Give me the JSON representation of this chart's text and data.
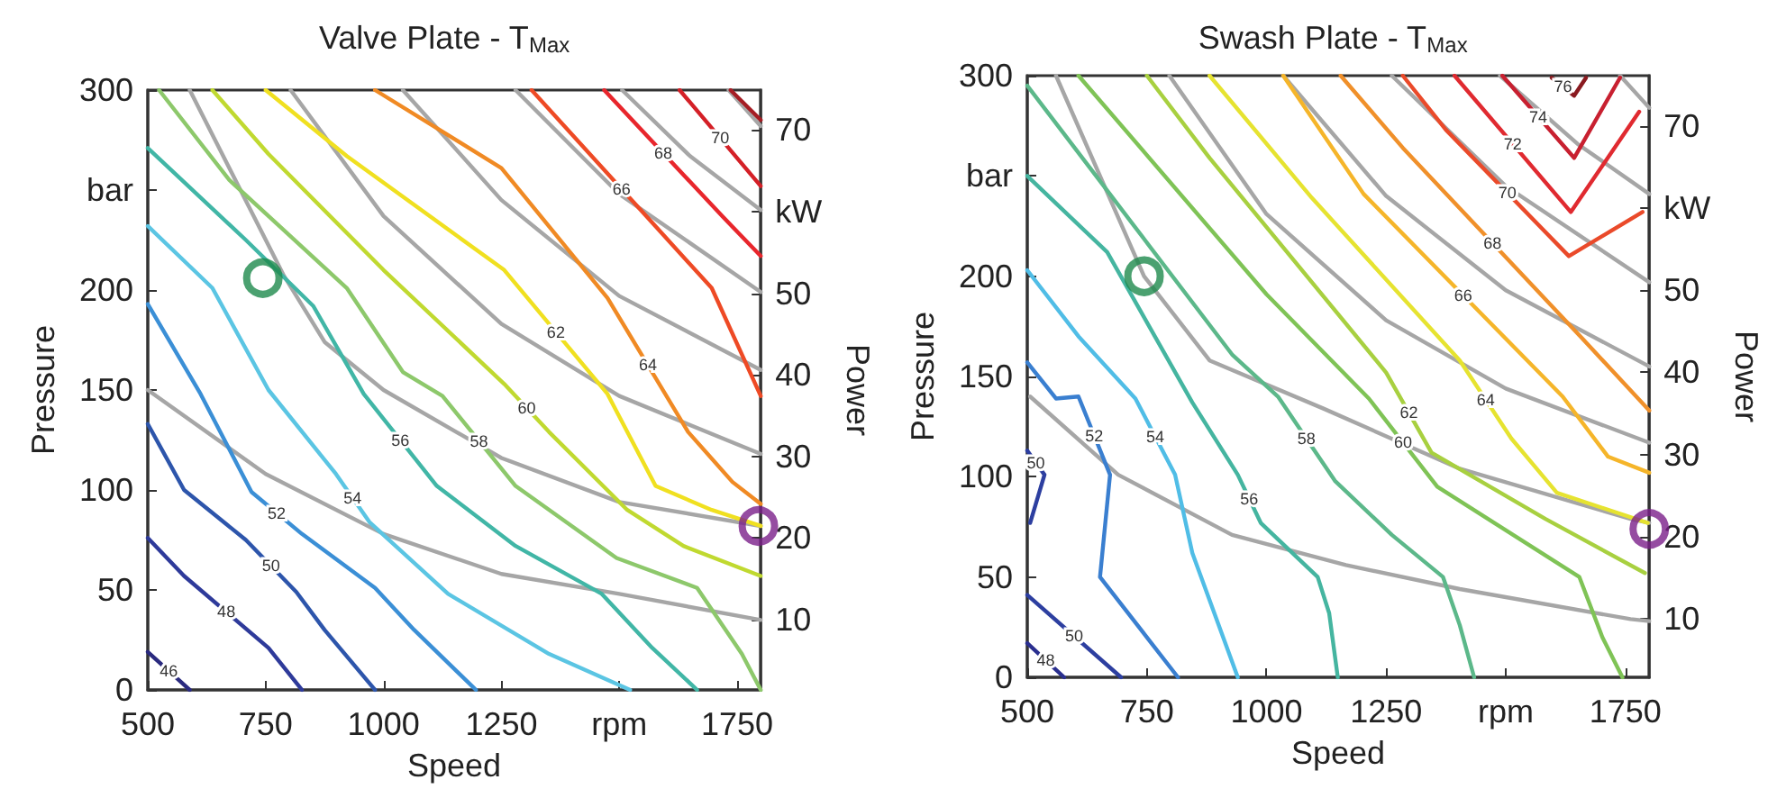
{
  "chart_data": [
    {
      "type": "line",
      "title": "Valve Plate - T$_{Max}$",
      "xlabel": "Speed",
      "ylabel": "Pressure",
      "y2label": "Power",
      "xlim": [
        500,
        1800
      ],
      "xticks": [
        500,
        750,
        1000,
        1250,
        {
          "value": 1500,
          "label": "rpm"
        },
        1750
      ],
      "ylim": [
        0,
        300
      ],
      "yticks": [
        0,
        50,
        100,
        150,
        200,
        {
          "value": 250,
          "label": "bar"
        },
        300
      ],
      "y2lim": [
        1.4,
        74.9
      ],
      "y2ticks": [
        10,
        20,
        30,
        40,
        50,
        {
          "value": 60,
          "label": "kW"
        },
        70
      ],
      "grid": false,
      "legend": false,
      "marker": "none",
      "line_style": "solid",
      "series": [
        {
          "color": "#a6a6a6",
          "x": [
            500,
            750,
            1000,
            1250,
            1500,
            1800
          ],
          "values": [
            150,
            108,
            78,
            58,
            48,
            35
          ]
        },
        {
          "color": "#a6a6a6",
          "x": [
            589,
            789,
            875,
            1000,
            1250,
            1500,
            1800
          ],
          "values": [
            300,
            207,
            174,
            150,
            116,
            94,
            82
          ]
        },
        {
          "color": "#a6a6a6",
          "x": [
            803,
            1000,
            1250,
            1500,
            1800
          ],
          "values": [
            300,
            237,
            183,
            147,
            118
          ]
        },
        {
          "color": "#a6a6a6",
          "x": [
            1041,
            1250,
            1500,
            1800
          ],
          "values": [
            300,
            245,
            197,
            160
          ]
        },
        {
          "color": "#a6a6a6",
          "x": [
            1280,
            1500,
            1800
          ],
          "values": [
            300,
            248,
            199
          ]
        },
        {
          "color": "#a6a6a6",
          "x": [
            1506,
            1650,
            1800
          ],
          "values": [
            300,
            267,
            240
          ]
        },
        {
          "color": "#a6a6a6",
          "x": [
            1732,
            1800
          ],
          "values": [
            300,
            282
          ]
        },
        {
          "name": "46",
          "color": "#2a2a7f",
          "x": [
            500,
            589
          ],
          "values": [
            19,
            0
          ]
        },
        {
          "name": "48",
          "color": "#2e3a9a",
          "x": [
            500,
            577,
            756,
            827
          ],
          "values": [
            76,
            57,
            21,
            0
          ]
        },
        {
          "name": "50",
          "color": "#2d55ab",
          "x": [
            500,
            577,
            708,
            815,
            875,
            982
          ],
          "values": [
            133,
            100,
            75,
            49,
            30,
            0
          ]
        },
        {
          "name": "52",
          "color": "#3b8fd6",
          "x": [
            500,
            612,
            720,
            827,
            982,
            1065,
            1196
          ],
          "values": [
            193,
            148,
            99,
            78,
            51,
            30,
            0
          ]
        },
        {
          "name": "54",
          "color": "#5bc5e3",
          "x": [
            500,
            637,
            756,
            899,
            970,
            1137,
            1351,
            1523
          ],
          "values": [
            232,
            201,
            150,
            108,
            84,
            48,
            18,
            0
          ]
        },
        {
          "name": "56",
          "color": "#41b6a6",
          "x": [
            500,
            708,
            851,
            958,
            1113,
            1280,
            1463,
            1570,
            1665
          ],
          "values": [
            271,
            225,
            192,
            148,
            102,
            72,
            48,
            21,
            0
          ]
        },
        {
          "name": "58",
          "color": "#8dc86b",
          "x": [
            524,
            673,
            922,
            1041,
            1125,
            1280,
            1494,
            1665,
            1760,
            1800
          ],
          "values": [
            300,
            255,
            201,
            159,
            147,
            102,
            66,
            51,
            18,
            0
          ]
        },
        {
          "name": "60",
          "color": "#c0d930",
          "x": [
            637,
            756,
            1000,
            1256,
            1351,
            1517,
            1636,
            1800
          ],
          "values": [
            300,
            268,
            210,
            153,
            129,
            90,
            72,
            57
          ]
        },
        {
          "name": "62",
          "color": "#f0e020",
          "x": [
            750,
            922,
            1256,
            1475,
            1577,
            1696,
            1800
          ],
          "values": [
            300,
            267,
            210,
            148,
            102,
            90,
            82
          ]
        },
        {
          "name": "64",
          "color": "#f08a24",
          "x": [
            982,
            1250,
            1475,
            1646,
            1740,
            1800
          ],
          "values": [
            300,
            261,
            196,
            129,
            104,
            93
          ]
        },
        {
          "name": "66",
          "color": "#ee4a25",
          "x": [
            1314,
            1696,
            1800
          ],
          "values": [
            300,
            201,
            147
          ]
        },
        {
          "name": "68",
          "color": "#e8262c",
          "x": [
            1468,
            1718,
            1800
          ],
          "values": [
            300,
            237,
            217
          ]
        },
        {
          "name": "70",
          "color": "#d42027",
          "x": [
            1628,
            1800
          ],
          "values": [
            300,
            252
          ]
        },
        {
          "color": "#a51d24",
          "x": [
            1736,
            1800
          ],
          "values": [
            300,
            285
          ]
        },
        {
          "type": "scatter",
          "marker": "circle",
          "color": "#1e8a4c",
          "x": [
            744
          ],
          "values": [
            206
          ]
        },
        {
          "type": "scatter",
          "marker": "circle",
          "color": "#7b1f8a",
          "x": [
            1795
          ],
          "values": [
            82
          ]
        }
      ]
    },
    {
      "type": "line",
      "title": "Swash Plate - T$_{Max}$",
      "xlabel": "Speed",
      "ylabel": "Pressure",
      "y2label": "Power",
      "xlim": [
        500,
        1800
      ],
      "xticks": [
        500,
        750,
        1000,
        1250,
        {
          "value": 1500,
          "label": "rpm"
        },
        1750
      ],
      "ylim": [
        0,
        300
      ],
      "yticks": [
        0,
        50,
        100,
        150,
        200,
        {
          "value": 250,
          "label": "bar"
        },
        300
      ],
      "y2lim": [
        2.9,
        76.1
      ],
      "y2ticks": [
        10,
        20,
        30,
        40,
        50,
        {
          "value": 60,
          "label": "kW"
        },
        70
      ],
      "grid": false,
      "legend": false,
      "marker": "none",
      "line_style": "solid",
      "series": [
        {
          "color": "#a6a6a6",
          "x": [
            506,
            690,
            928,
            1166,
            1404,
            1761,
            1800
          ],
          "values": [
            140,
            101,
            71,
            56,
            44,
            29,
            28
          ]
        },
        {
          "color": "#a6a6a6",
          "x": [
            560,
            744,
            881,
            1119,
            1404,
            1761,
            1800
          ],
          "values": [
            300,
            200,
            158,
            134,
            104,
            79,
            77
          ]
        },
        {
          "color": "#a6a6a6",
          "x": [
            797,
            1000,
            1250,
            1500,
            1800
          ],
          "values": [
            300,
            231,
            178,
            144,
            117
          ]
        },
        {
          "color": "#a6a6a6",
          "x": [
            1035,
            1250,
            1500,
            1800
          ],
          "values": [
            300,
            240,
            193,
            155
          ]
        },
        {
          "color": "#a6a6a6",
          "x": [
            1262,
            1500,
            1800
          ],
          "values": [
            300,
            245,
            197
          ]
        },
        {
          "color": "#a6a6a6",
          "x": [
            1488,
            1650,
            1800
          ],
          "values": [
            300,
            266,
            241
          ]
        },
        {
          "color": "#a6a6a6",
          "x": [
            1739,
            1800
          ],
          "values": [
            300,
            284
          ]
        },
        {
          "name": "48",
          "color": "#2a2f8f",
          "x": [
            500,
            577
          ],
          "values": [
            17,
            0
          ]
        },
        {
          "name": "50",
          "color": "#2d3fa0",
          "x": [
            500,
            696
          ],
          "values": [
            41,
            0
          ]
        },
        {
          "name": "50",
          "color": "#2d3fa0",
          "x": [
            500,
            536,
            506
          ],
          "values": [
            113,
            101,
            77
          ]
        },
        {
          "name": "52",
          "color": "#3a7fd0",
          "x": [
            500,
            560,
            607,
            673,
            652,
            815
          ],
          "values": [
            157,
            139,
            140,
            101,
            50,
            0
          ]
        },
        {
          "name": "54",
          "color": "#50bde6",
          "x": [
            500,
            607,
            726,
            809,
            845,
            940
          ],
          "values": [
            203,
            170,
            139,
            101,
            62,
            0
          ]
        },
        {
          "name": "56",
          "color": "#45b5a0",
          "x": [
            500,
            667,
            845,
            940,
            988,
            1107,
            1131,
            1149
          ],
          "values": [
            250,
            212,
            137,
            101,
            77,
            50,
            32,
            0
          ]
        },
        {
          "name": "58",
          "color": "#5cb88a",
          "x": [
            500,
            631,
            928,
            1024,
            1143,
            1262,
            1369,
            1404,
            1434
          ],
          "values": [
            295,
            254,
            161,
            140,
            98,
            71,
            50,
            26,
            0
          ]
        },
        {
          "name": "60",
          "color": "#7fc356",
          "x": [
            607,
            1000,
            1214,
            1357,
            1654,
            1702,
            1744
          ],
          "values": [
            300,
            191,
            139,
            95,
            50,
            20,
            0
          ]
        },
        {
          "name": "62",
          "color": "#a8d040",
          "x": [
            750,
            881,
            1250,
            1345,
            1583,
            1791
          ],
          "values": [
            300,
            259,
            152,
            112,
            79,
            52
          ]
        },
        {
          "name": "64",
          "color": "#e6e330",
          "x": [
            881,
            1095,
            1404,
            1512,
            1607,
            1797
          ],
          "values": [
            300,
            239,
            158,
            119,
            92,
            77
          ]
        },
        {
          "name": "66",
          "color": "#f5b52a",
          "x": [
            1035,
            1203,
            1619,
            1714,
            1800
          ],
          "values": [
            300,
            241,
            140,
            110,
            102
          ]
        },
        {
          "name": "68",
          "color": "#f0902a",
          "x": [
            1155,
            1285,
            1660,
            1800
          ],
          "values": [
            300,
            264,
            169,
            133
          ]
        },
        {
          "name": "70",
          "color": "#ea4a2a",
          "x": [
            1285,
            1375,
            1632,
            1786
          ],
          "values": [
            300,
            273,
            210,
            232
          ]
        },
        {
          "name": "72",
          "color": "#e02a30",
          "x": [
            1393,
            1636,
            1779
          ],
          "values": [
            300,
            232,
            282
          ]
        },
        {
          "name": "74",
          "color": "#c82030",
          "x": [
            1493,
            1643,
            1739
          ],
          "values": [
            300,
            259,
            299
          ]
        },
        {
          "name": "76",
          "color": "#8a1a20",
          "x": [
            1596,
            1643,
            1668
          ],
          "values": [
            299,
            290,
            299
          ]
        },
        {
          "type": "scatter",
          "marker": "circle",
          "color": "#1e8a4c",
          "x": [
            744
          ],
          "values": [
            200
          ]
        },
        {
          "type": "scatter",
          "marker": "circle",
          "color": "#7b1f8a",
          "x": [
            1800
          ],
          "values": [
            74
          ]
        }
      ]
    }
  ]
}
